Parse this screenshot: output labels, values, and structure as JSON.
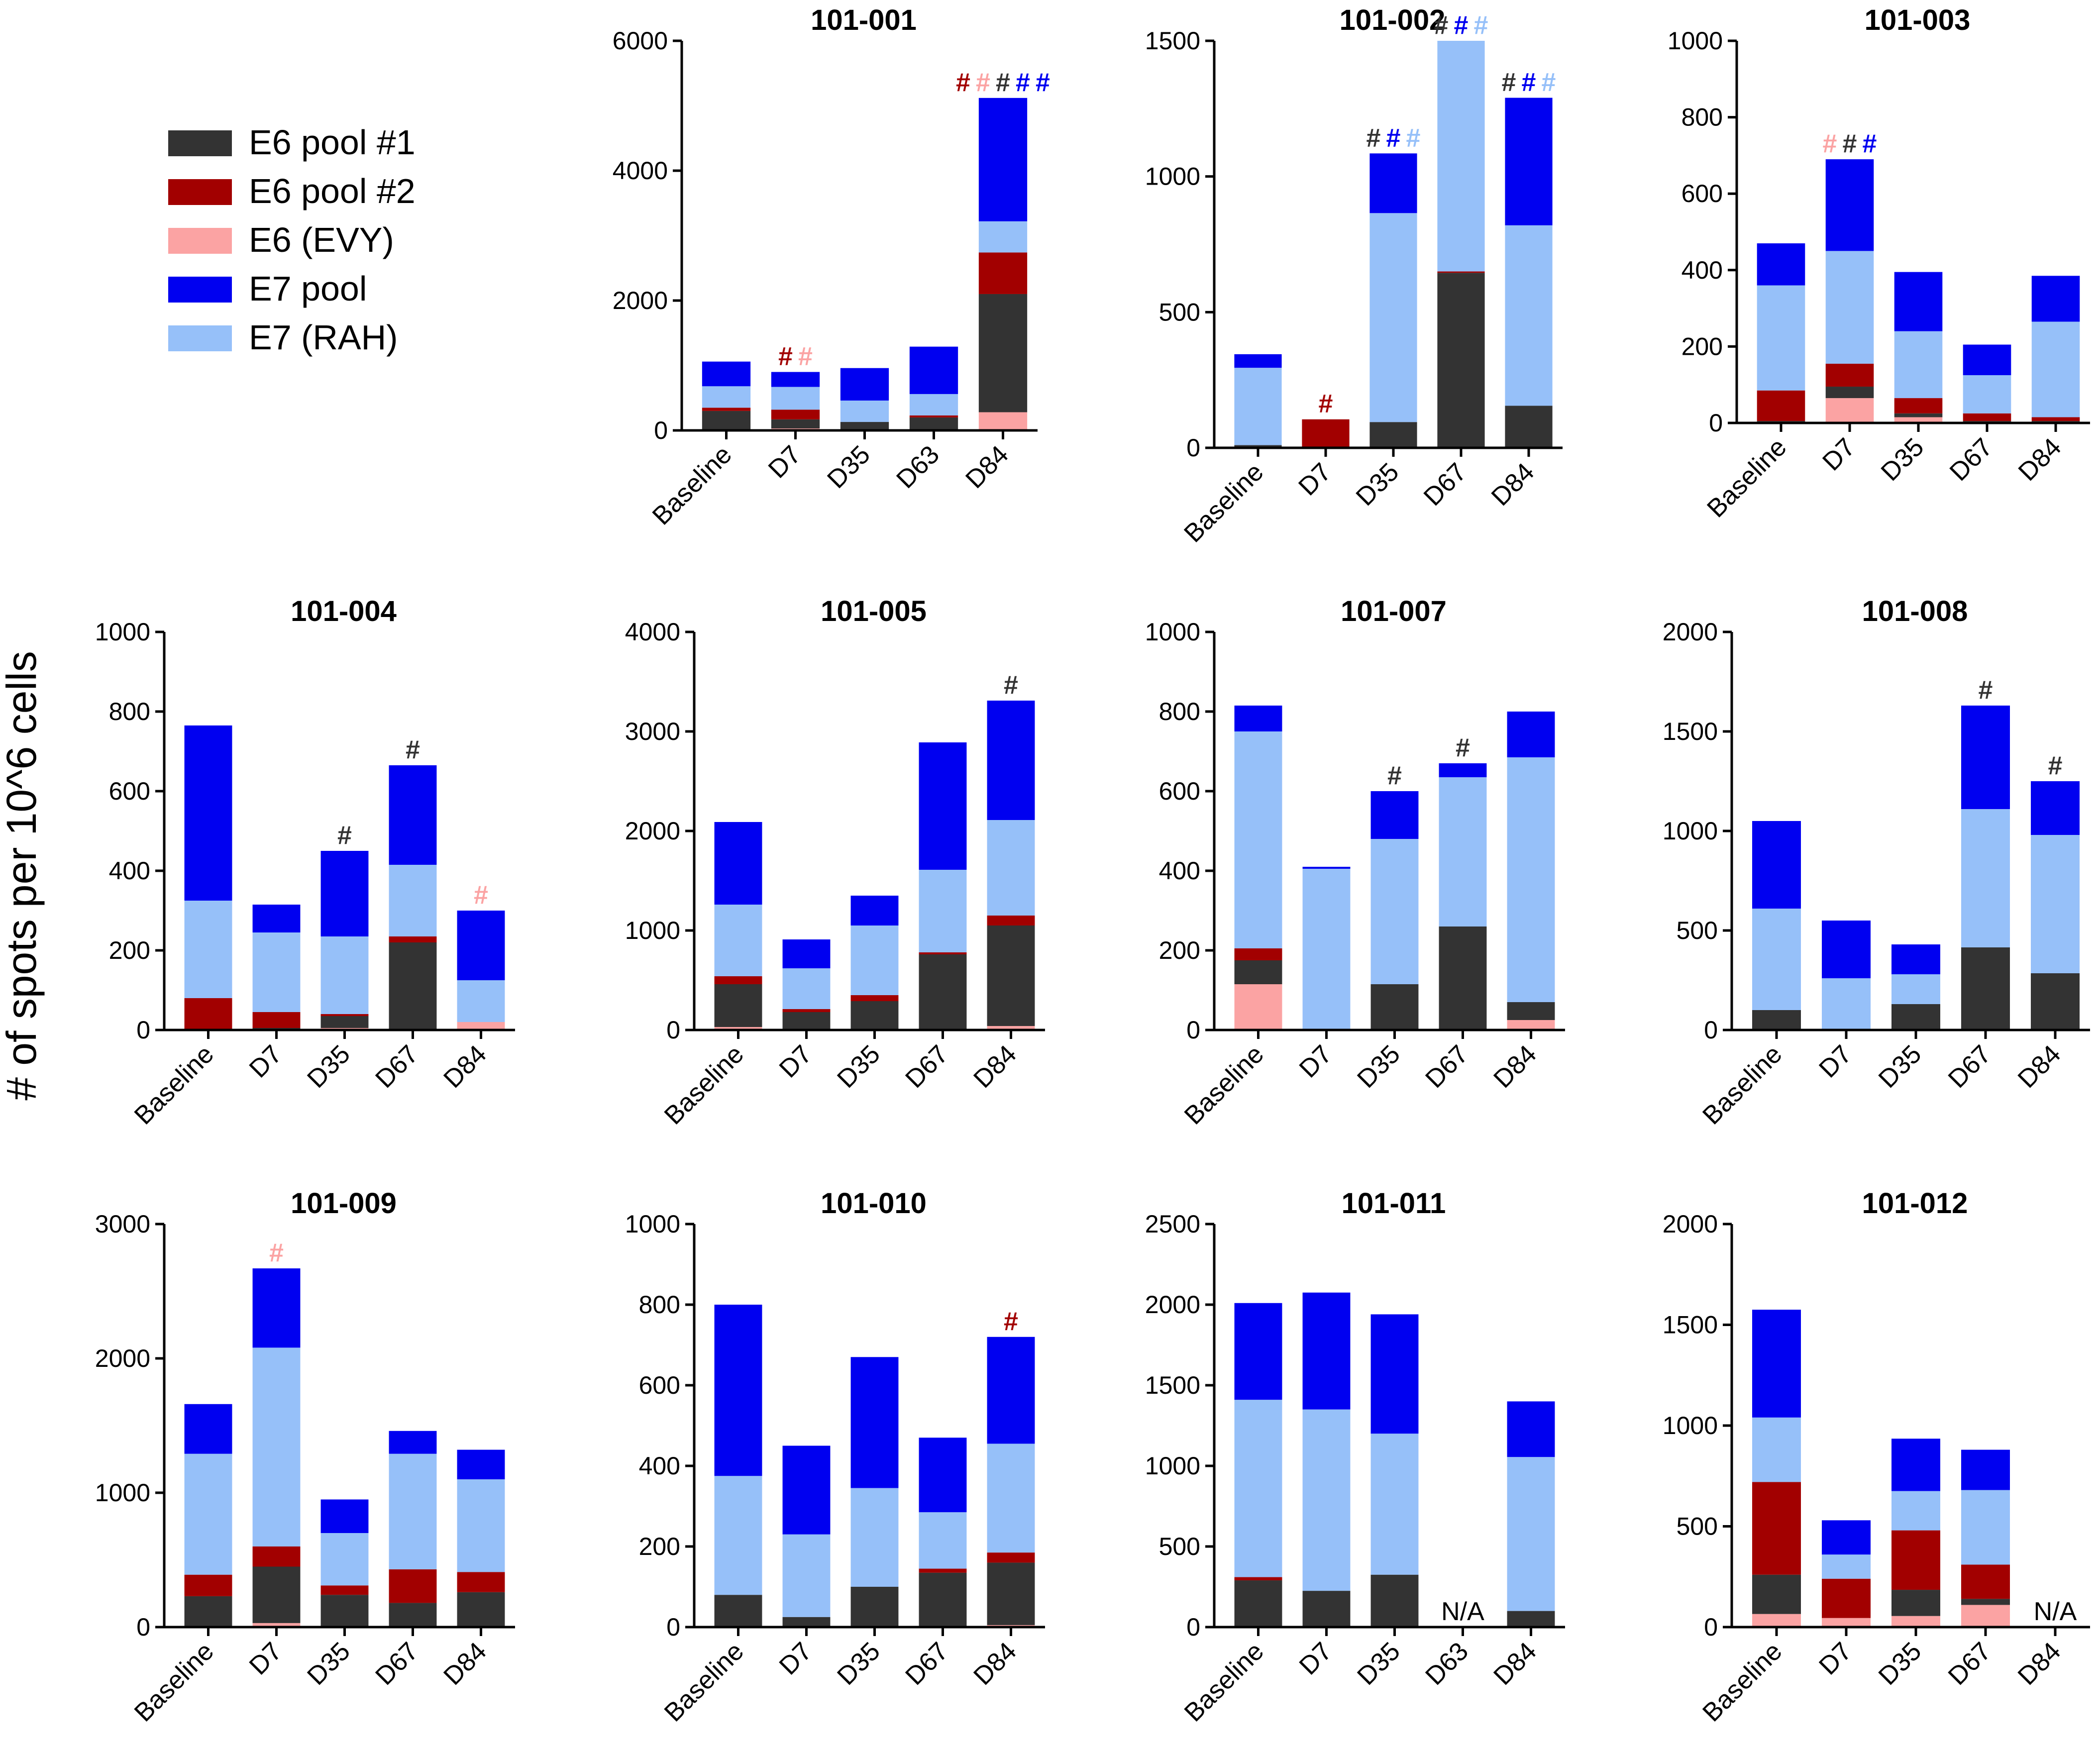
{
  "figure": {
    "ylabel": "# of spots per 10^6 cells"
  },
  "legend": {
    "items": [
      {
        "label": "E6 pool #1",
        "color": "#333333"
      },
      {
        "label": "E6 pool #2",
        "color": "#a20000"
      },
      {
        "label": "E6 (EVY)",
        "color": "#fba3a3"
      },
      {
        "label": "E7 pool",
        "color": "#0000f0"
      },
      {
        "label": "E7 (RAH)",
        "color": "#96c0f9"
      }
    ]
  },
  "colors": {
    "E6 pool #1": "#333333",
    "E6 pool #2": "#a20000",
    "E6 (EVY)": "#fba3a3",
    "E7 pool": "#0000f0",
    "E7 (RAH)": "#96c0f9",
    "axis": "#000000"
  },
  "chart_data": [
    {
      "type": "bar",
      "stacked": true,
      "title": "101-001",
      "categories": [
        "Baseline",
        "D7",
        "D35",
        "D63",
        "D84"
      ],
      "ylim": [
        0,
        6000
      ],
      "yticks": [
        0,
        2000,
        4000,
        6000
      ],
      "series": [
        {
          "name": "E6 (EVY)",
          "values": [
            0,
            30,
            0,
            0,
            280
          ]
        },
        {
          "name": "E6 pool #1",
          "values": [
            300,
            140,
            130,
            200,
            1820
          ]
        },
        {
          "name": "E6 pool #2",
          "values": [
            50,
            150,
            0,
            30,
            640
          ]
        },
        {
          "name": "E7 (RAH)",
          "values": [
            330,
            350,
            330,
            330,
            480
          ]
        },
        {
          "name": "E7 pool",
          "values": [
            380,
            230,
            500,
            730,
            1900
          ]
        }
      ],
      "markers": [
        {
          "category": "D7",
          "symbols": [
            {
              "text": "#",
              "series": "E6 pool #2"
            },
            {
              "text": "#",
              "series": "E6 (EVY)"
            }
          ]
        },
        {
          "category": "D84",
          "symbols": [
            {
              "text": "#",
              "series": "E6 pool #2"
            },
            {
              "text": "#",
              "series": "E6 (EVY)"
            },
            {
              "text": "#",
              "series": "E6 pool #1"
            },
            {
              "text": "#",
              "series": "E7 pool"
            },
            {
              "text": "#",
              "series": "E7 pool"
            }
          ]
        }
      ]
    },
    {
      "type": "bar",
      "stacked": true,
      "title": "101-002",
      "categories": [
        "Baseline",
        "D7",
        "D35",
        "D67",
        "D84"
      ],
      "ylim": [
        0,
        1500
      ],
      "yticks": [
        0,
        500,
        1000,
        1500
      ],
      "series": [
        {
          "name": "E6 (EVY)",
          "values": [
            0,
            0,
            0,
            0,
            0
          ]
        },
        {
          "name": "E6 pool #1",
          "values": [
            10,
            0,
            95,
            645,
            155
          ]
        },
        {
          "name": "E6 pool #2",
          "values": [
            0,
            105,
            0,
            5,
            0
          ]
        },
        {
          "name": "E7 (RAH)",
          "values": [
            285,
            0,
            770,
            850,
            665
          ]
        },
        {
          "name": "E7 pool",
          "values": [
            50,
            0,
            220,
            0,
            470
          ]
        }
      ],
      "markers": [
        {
          "category": "D7",
          "symbols": [
            {
              "text": "#",
              "series": "E6 pool #2"
            }
          ]
        },
        {
          "category": "D35",
          "symbols": [
            {
              "text": "#",
              "series": "E6 pool #1"
            },
            {
              "text": "#",
              "series": "E7 pool"
            },
            {
              "text": "#",
              "series": "E7 (RAH)"
            }
          ]
        },
        {
          "category": "D67",
          "symbols": [
            {
              "text": "#",
              "series": "E6 pool #1"
            },
            {
              "text": "#",
              "series": "E7 pool"
            },
            {
              "text": "#",
              "series": "E7 (RAH)"
            }
          ]
        },
        {
          "category": "D84",
          "symbols": [
            {
              "text": "#",
              "series": "E6 pool #1"
            },
            {
              "text": "#",
              "series": "E7 pool"
            },
            {
              "text": "#",
              "series": "E7 (RAH)"
            }
          ]
        }
      ]
    },
    {
      "type": "bar",
      "stacked": true,
      "title": "101-003",
      "categories": [
        "Baseline",
        "D7",
        "D35",
        "D67",
        "D84"
      ],
      "ylim": [
        0,
        1000
      ],
      "yticks": [
        0,
        200,
        400,
        600,
        800,
        1000
      ],
      "series": [
        {
          "name": "E6 (EVY)",
          "values": [
            0,
            65,
            15,
            0,
            0
          ]
        },
        {
          "name": "E6 pool #1",
          "values": [
            5,
            30,
            10,
            5,
            5
          ]
        },
        {
          "name": "E6 pool #2",
          "values": [
            80,
            60,
            40,
            20,
            10
          ]
        },
        {
          "name": "E7 (RAH)",
          "values": [
            275,
            295,
            175,
            100,
            250
          ]
        },
        {
          "name": "E7 pool",
          "values": [
            110,
            240,
            155,
            80,
            120
          ]
        }
      ],
      "markers": [
        {
          "category": "D7",
          "symbols": [
            {
              "text": "#",
              "series": "E6 (EVY)"
            },
            {
              "text": "#",
              "series": "E6 pool #1"
            },
            {
              "text": "#",
              "series": "E7 pool"
            }
          ]
        }
      ]
    },
    {
      "type": "bar",
      "stacked": true,
      "title": "101-004",
      "categories": [
        "Baseline",
        "D7",
        "D35",
        "D67",
        "D84"
      ],
      "ylim": [
        0,
        1000
      ],
      "yticks": [
        0,
        200,
        400,
        600,
        800,
        1000
      ],
      "series": [
        {
          "name": "E6 (EVY)",
          "values": [
            0,
            0,
            5,
            0,
            20
          ]
        },
        {
          "name": "E6 pool #1",
          "values": [
            0,
            5,
            30,
            220,
            0
          ]
        },
        {
          "name": "E6 pool #2",
          "values": [
            80,
            40,
            5,
            15,
            0
          ]
        },
        {
          "name": "E7 (RAH)",
          "values": [
            245,
            200,
            195,
            180,
            105
          ]
        },
        {
          "name": "E7 pool",
          "values": [
            440,
            70,
            215,
            250,
            175
          ]
        }
      ],
      "markers": [
        {
          "category": "D35",
          "symbols": [
            {
              "text": "#",
              "series": "E6 pool #1"
            }
          ]
        },
        {
          "category": "D67",
          "symbols": [
            {
              "text": "#",
              "series": "E6 pool #1"
            }
          ]
        },
        {
          "category": "D84",
          "symbols": [
            {
              "text": "#",
              "series": "E6 (EVY)"
            }
          ]
        }
      ]
    },
    {
      "type": "bar",
      "stacked": true,
      "title": "101-005",
      "categories": [
        "Baseline",
        "D7",
        "D35",
        "D67",
        "D84"
      ],
      "ylim": [
        0,
        4000
      ],
      "yticks": [
        0,
        1000,
        2000,
        3000,
        4000
      ],
      "series": [
        {
          "name": "E6 (EVY)",
          "values": [
            30,
            0,
            0,
            0,
            40
          ]
        },
        {
          "name": "E6 pool #1",
          "values": [
            430,
            180,
            290,
            760,
            1010
          ]
        },
        {
          "name": "E6 pool #2",
          "values": [
            80,
            30,
            60,
            20,
            100
          ]
        },
        {
          "name": "E7 (RAH)",
          "values": [
            720,
            410,
            700,
            830,
            960
          ]
        },
        {
          "name": "E7 pool",
          "values": [
            830,
            290,
            300,
            1280,
            1200
          ]
        }
      ],
      "markers": [
        {
          "category": "D84",
          "symbols": [
            {
              "text": "#",
              "series": "E6 pool #1"
            }
          ]
        }
      ]
    },
    {
      "type": "bar",
      "stacked": true,
      "title": "101-007",
      "categories": [
        "Baseline",
        "D7",
        "D35",
        "D67",
        "D84"
      ],
      "ylim": [
        0,
        1000
      ],
      "yticks": [
        0,
        200,
        400,
        600,
        800,
        1000
      ],
      "series": [
        {
          "name": "E6 (EVY)",
          "values": [
            115,
            0,
            0,
            0,
            25
          ]
        },
        {
          "name": "E6 pool #1",
          "values": [
            60,
            0,
            115,
            260,
            45
          ]
        },
        {
          "name": "E6 pool #2",
          "values": [
            30,
            0,
            0,
            0,
            0
          ]
        },
        {
          "name": "E7 (RAH)",
          "values": [
            545,
            405,
            365,
            375,
            615
          ]
        },
        {
          "name": "E7 pool",
          "values": [
            65,
            5,
            120,
            35,
            115
          ]
        }
      ],
      "markers": [
        {
          "category": "D35",
          "symbols": [
            {
              "text": "#",
              "series": "E6 pool #1"
            }
          ]
        },
        {
          "category": "D67",
          "symbols": [
            {
              "text": "#",
              "series": "E6 pool #1"
            }
          ]
        }
      ]
    },
    {
      "type": "bar",
      "stacked": true,
      "title": "101-008",
      "categories": [
        "Baseline",
        "D7",
        "D35",
        "D67",
        "D84"
      ],
      "ylim": [
        0,
        2000
      ],
      "yticks": [
        0,
        500,
        1000,
        1500,
        2000
      ],
      "series": [
        {
          "name": "E6 (EVY)",
          "values": [
            0,
            0,
            0,
            0,
            0
          ]
        },
        {
          "name": "E6 pool #1",
          "values": [
            100,
            5,
            130,
            415,
            285
          ]
        },
        {
          "name": "E6 pool #2",
          "values": [
            0,
            0,
            0,
            0,
            0
          ]
        },
        {
          "name": "E7 (RAH)",
          "values": [
            510,
            255,
            150,
            695,
            695
          ]
        },
        {
          "name": "E7 pool",
          "values": [
            440,
            290,
            150,
            520,
            270
          ]
        }
      ],
      "markers": [
        {
          "category": "D67",
          "symbols": [
            {
              "text": "#",
              "series": "E6 pool #1"
            }
          ]
        },
        {
          "category": "D84",
          "symbols": [
            {
              "text": "#",
              "series": "E6 pool #1"
            }
          ]
        }
      ]
    },
    {
      "type": "bar",
      "stacked": true,
      "title": "101-009",
      "categories": [
        "Baseline",
        "D7",
        "D35",
        "D67",
        "D84"
      ],
      "ylim": [
        0,
        3000
      ],
      "yticks": [
        0,
        1000,
        2000,
        3000
      ],
      "series": [
        {
          "name": "E6 (EVY)",
          "values": [
            0,
            30,
            0,
            0,
            0
          ]
        },
        {
          "name": "E6 pool #1",
          "values": [
            230,
            420,
            240,
            180,
            260
          ]
        },
        {
          "name": "E6 pool #2",
          "values": [
            160,
            150,
            70,
            250,
            150
          ]
        },
        {
          "name": "E7 (RAH)",
          "values": [
            900,
            1480,
            390,
            860,
            690
          ]
        },
        {
          "name": "E7 pool",
          "values": [
            370,
            590,
            250,
            170,
            220
          ]
        }
      ],
      "markers": [
        {
          "category": "D7",
          "symbols": [
            {
              "text": "#",
              "series": "E6 (EVY)"
            }
          ]
        }
      ]
    },
    {
      "type": "bar",
      "stacked": true,
      "title": "101-010",
      "categories": [
        "Baseline",
        "D7",
        "D35",
        "D67",
        "D84"
      ],
      "ylim": [
        0,
        1000
      ],
      "yticks": [
        0,
        200,
        400,
        600,
        800,
        1000
      ],
      "series": [
        {
          "name": "E6 (EVY)",
          "values": [
            0,
            0,
            0,
            0,
            5
          ]
        },
        {
          "name": "E6 pool #1",
          "values": [
            80,
            25,
            100,
            135,
            155
          ]
        },
        {
          "name": "E6 pool #2",
          "values": [
            0,
            0,
            0,
            10,
            25
          ]
        },
        {
          "name": "E7 (RAH)",
          "values": [
            295,
            205,
            245,
            140,
            270
          ]
        },
        {
          "name": "E7 pool",
          "values": [
            425,
            220,
            325,
            185,
            265
          ]
        }
      ],
      "markers": [
        {
          "category": "D84",
          "symbols": [
            {
              "text": "#",
              "series": "E6 pool #2"
            }
          ]
        }
      ]
    },
    {
      "type": "bar",
      "stacked": true,
      "title": "101-011",
      "categories": [
        "Baseline",
        "D7",
        "D35",
        "D63",
        "D84"
      ],
      "ylim": [
        0,
        2500
      ],
      "yticks": [
        0,
        500,
        1000,
        1500,
        2000,
        2500
      ],
      "series": [
        {
          "name": "E6 (EVY)",
          "values": [
            0,
            0,
            0,
            0,
            0
          ]
        },
        {
          "name": "E6 pool #1",
          "values": [
            290,
            225,
            325,
            0,
            100
          ]
        },
        {
          "name": "E6 pool #2",
          "values": [
            20,
            0,
            0,
            0,
            0
          ]
        },
        {
          "name": "E7 (RAH)",
          "values": [
            1100,
            1125,
            875,
            0,
            955
          ]
        },
        {
          "name": "E7 pool",
          "values": [
            600,
            725,
            740,
            0,
            345
          ]
        }
      ],
      "annotations": [
        {
          "category": "D63",
          "text": "N/A"
        }
      ],
      "markers": []
    },
    {
      "type": "bar",
      "stacked": true,
      "title": "101-012",
      "categories": [
        "Baseline",
        "D7",
        "D35",
        "D67",
        "D84"
      ],
      "ylim": [
        0,
        2000
      ],
      "yticks": [
        0,
        500,
        1000,
        1500,
        2000
      ],
      "series": [
        {
          "name": "E6 (EVY)",
          "values": [
            65,
            45,
            55,
            110,
            0
          ]
        },
        {
          "name": "E6 pool #1",
          "values": [
            195,
            0,
            130,
            30,
            0
          ]
        },
        {
          "name": "E6 pool #2",
          "values": [
            460,
            195,
            295,
            170,
            0
          ]
        },
        {
          "name": "E7 (RAH)",
          "values": [
            320,
            120,
            195,
            370,
            0
          ]
        },
        {
          "name": "E7 pool",
          "values": [
            535,
            170,
            260,
            200,
            0
          ]
        }
      ],
      "annotations": [
        {
          "category": "D84",
          "text": "N/A"
        }
      ],
      "markers": []
    }
  ]
}
